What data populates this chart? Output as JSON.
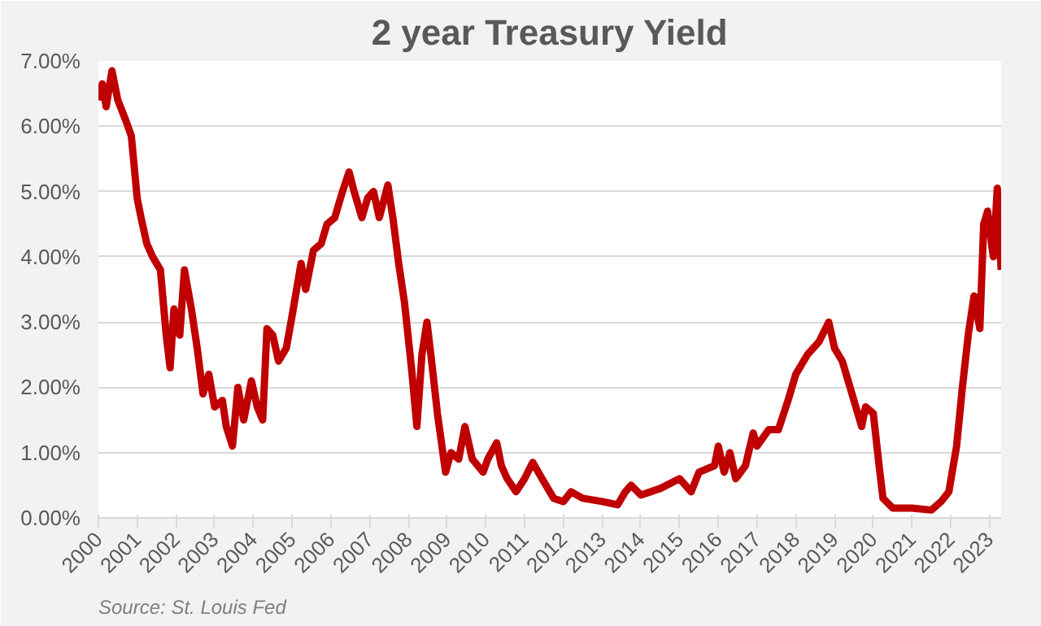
{
  "chart_data": {
    "type": "line",
    "title": "2 year Treasury Yield",
    "annotations": [
      "Source: St. Louis Fed"
    ],
    "x": [
      2000.0,
      2000.1,
      2000.2,
      2000.35,
      2000.5,
      2000.7,
      2000.85,
      2001.0,
      2001.1,
      2001.25,
      2001.4,
      2001.6,
      2001.75,
      2001.85,
      2001.95,
      2002.1,
      2002.22,
      2002.4,
      2002.55,
      2002.7,
      2002.85,
      2003.0,
      2003.2,
      2003.3,
      2003.46,
      2003.6,
      2003.75,
      2003.95,
      2004.1,
      2004.24,
      2004.35,
      2004.5,
      2004.65,
      2004.85,
      2005.0,
      2005.23,
      2005.35,
      2005.55,
      2005.75,
      2005.9,
      2006.1,
      2006.3,
      2006.47,
      2006.6,
      2006.8,
      2006.95,
      2007.1,
      2007.25,
      2007.47,
      2007.6,
      2007.75,
      2007.9,
      2008.08,
      2008.22,
      2008.35,
      2008.48,
      2008.6,
      2008.75,
      2008.96,
      2009.1,
      2009.3,
      2009.46,
      2009.65,
      2009.93,
      2010.05,
      2010.28,
      2010.4,
      2010.55,
      2010.78,
      2011.0,
      2011.21,
      2011.45,
      2011.75,
      2012.0,
      2012.2,
      2012.5,
      2013.0,
      2013.4,
      2013.6,
      2013.75,
      2014.0,
      2014.5,
      2015.0,
      2015.3,
      2015.5,
      2015.9,
      2016.0,
      2016.15,
      2016.3,
      2016.45,
      2016.7,
      2016.9,
      2017.0,
      2017.3,
      2017.55,
      2017.8,
      2018.0,
      2018.3,
      2018.6,
      2018.85,
      2019.0,
      2019.2,
      2019.35,
      2019.5,
      2019.7,
      2019.8,
      2020.0,
      2020.15,
      2020.25,
      2020.5,
      2021.0,
      2021.5,
      2021.75,
      2021.95,
      2022.15,
      2022.3,
      2022.45,
      2022.6,
      2022.75,
      2022.85,
      2022.95,
      2023.05,
      2023.1,
      2023.2,
      2023.3
    ],
    "series": [
      {
        "color": "#c00000",
        "values": [
          6.4,
          6.65,
          6.3,
          6.85,
          6.4,
          6.1,
          5.85,
          4.9,
          4.6,
          4.2,
          4.0,
          3.8,
          2.8,
          2.3,
          3.2,
          2.8,
          3.8,
          3.2,
          2.6,
          1.9,
          2.2,
          1.7,
          1.8,
          1.4,
          1.1,
          2.0,
          1.5,
          2.1,
          1.7,
          1.5,
          2.9,
          2.8,
          2.4,
          2.6,
          3.1,
          3.9,
          3.5,
          4.1,
          4.2,
          4.5,
          4.6,
          5.0,
          5.3,
          5.0,
          4.6,
          4.9,
          5.0,
          4.6,
          5.1,
          4.6,
          3.9,
          3.3,
          2.3,
          1.4,
          2.5,
          3.0,
          2.4,
          1.6,
          0.7,
          1.0,
          0.9,
          1.4,
          0.9,
          0.7,
          0.9,
          1.15,
          0.8,
          0.6,
          0.4,
          0.6,
          0.85,
          0.6,
          0.3,
          0.25,
          0.4,
          0.3,
          0.25,
          0.2,
          0.4,
          0.5,
          0.35,
          0.45,
          0.6,
          0.4,
          0.7,
          0.8,
          1.1,
          0.7,
          1.0,
          0.6,
          0.8,
          1.3,
          1.1,
          1.35,
          1.35,
          1.8,
          2.2,
          2.5,
          2.7,
          3.0,
          2.6,
          2.4,
          2.1,
          1.8,
          1.4,
          1.7,
          1.6,
          0.8,
          0.3,
          0.15,
          0.15,
          0.12,
          0.25,
          0.4,
          1.1,
          2.0,
          2.8,
          3.4,
          2.9,
          4.5,
          4.7,
          4.2,
          4.0,
          5.05,
          3.8
        ]
      }
    ],
    "xlim": [
      2000,
      2023.3
    ],
    "xticks": [
      2000,
      2001,
      2002,
      2003,
      2004,
      2005,
      2006,
      2007,
      2008,
      2009,
      2010,
      2011,
      2012,
      2013,
      2014,
      2015,
      2016,
      2017,
      2018,
      2019,
      2020,
      2021,
      2022,
      2023
    ],
    "ylim": [
      0,
      7
    ],
    "yticks": [
      {
        "value": 0,
        "label": "0.00%"
      },
      {
        "value": 1,
        "label": "1.00%"
      },
      {
        "value": 2,
        "label": "2.00%"
      },
      {
        "value": 3,
        "label": "3.00%"
      },
      {
        "value": 4,
        "label": "4.00%"
      },
      {
        "value": 5,
        "label": "5.00%"
      },
      {
        "value": 6,
        "label": "6.00%"
      },
      {
        "value": 7,
        "label": "7.00%"
      }
    ],
    "grid": "y",
    "line_style": "solid"
  }
}
